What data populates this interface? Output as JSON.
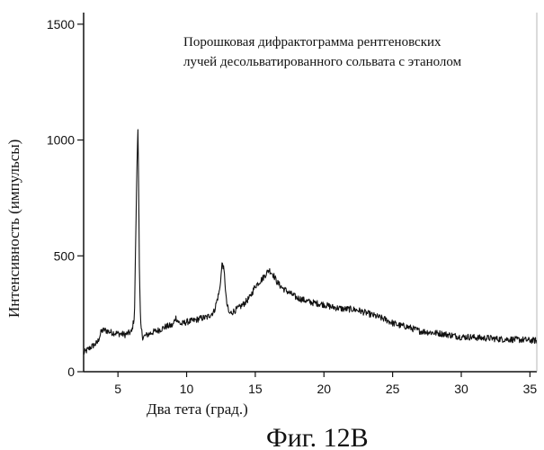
{
  "figure": {
    "caption": "Фиг. 12В"
  },
  "chart_data": {
    "type": "line",
    "title": [
      "Порошковая дифрактограмма рентгеновских",
      "лучей десольватированного сольвата с этанолом"
    ],
    "xlabel": "Два тета (град.)",
    "ylabel": "Интенсивность (импульсы)",
    "xlim": [
      2.5,
      35.5
    ],
    "ylim": [
      0,
      1550
    ],
    "xticks": [
      5,
      10,
      15,
      20,
      25,
      30,
      35
    ],
    "yticks": [
      0,
      500,
      1000,
      1500
    ],
    "grid": false,
    "legend": "none",
    "series": [
      {
        "x": [
          2.5,
          3.0,
          3.5,
          3.8,
          4.0,
          4.5,
          5.0,
          5.5,
          6.0,
          6.2,
          6.35,
          6.45,
          6.5,
          6.55,
          6.65,
          6.8,
          7.0,
          7.5,
          8.0,
          8.5,
          9.0,
          9.2,
          9.4,
          9.6,
          10.0,
          10.5,
          11.0,
          11.5,
          12.0,
          12.4,
          12.6,
          12.75,
          12.9,
          13.1,
          13.4,
          13.8,
          14.2,
          14.6,
          15.0,
          15.5,
          16.0,
          16.3,
          16.6,
          17.0,
          17.5,
          18.0,
          18.5,
          19.0,
          19.5,
          20.0,
          20.5,
          21.0,
          21.5,
          22.0,
          22.5,
          23.0,
          23.5,
          24.0,
          24.5,
          25.0,
          25.5,
          26.0,
          26.5,
          27.0,
          27.5,
          28.0,
          28.5,
          29.0,
          29.5,
          30.0,
          30.5,
          31.0,
          31.5,
          32.0,
          32.5,
          33.0,
          33.5,
          34.0,
          34.5,
          35.0,
          35.5
        ],
        "y": [
          80,
          105,
          125,
          175,
          180,
          170,
          165,
          160,
          172,
          240,
          780,
          1065,
          870,
          480,
          200,
          150,
          155,
          170,
          180,
          195,
          200,
          235,
          215,
          205,
          215,
          220,
          230,
          235,
          260,
          350,
          475,
          420,
          300,
          250,
          260,
          275,
          295,
          320,
          370,
          400,
          440,
          420,
          385,
          360,
          340,
          320,
          310,
          300,
          295,
          290,
          280,
          275,
          270,
          270,
          265,
          255,
          245,
          235,
          225,
          210,
          200,
          195,
          185,
          175,
          172,
          168,
          165,
          160,
          155,
          150,
          150,
          148,
          145,
          145,
          142,
          140,
          140,
          138,
          138,
          135,
          135
        ]
      }
    ]
  }
}
